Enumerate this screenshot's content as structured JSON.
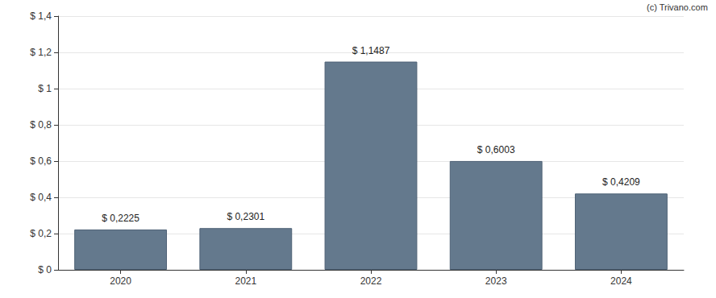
{
  "chart_data": {
    "type": "bar",
    "annotations": [
      "(c) Trivano.com"
    ],
    "categories": [
      "2020",
      "2021",
      "2022",
      "2023",
      "2024"
    ],
    "values": [
      0.2225,
      0.2301,
      1.1487,
      0.6003,
      0.4209
    ],
    "value_labels": [
      "$ 0,2225",
      "$ 0,2301",
      "$ 1,1487",
      "$ 0,6003",
      "$ 0,4209"
    ],
    "data_labels": true,
    "color": "#64798d",
    "ylim": [
      0,
      1.4
    ],
    "yticks": [
      {
        "value": 0,
        "label": "$ 0"
      },
      {
        "value": 0.2,
        "label": "$ 0,2"
      },
      {
        "value": 0.4,
        "label": "$ 0,4"
      },
      {
        "value": 0.6,
        "label": "$ 0,6"
      },
      {
        "value": 0.8,
        "label": "$ 0,8"
      },
      {
        "value": 1,
        "label": "$ 1"
      },
      {
        "value": 1.2,
        "label": "$ 1,2"
      },
      {
        "value": 1.4,
        "label": "$ 1,4"
      }
    ],
    "grid": true
  }
}
